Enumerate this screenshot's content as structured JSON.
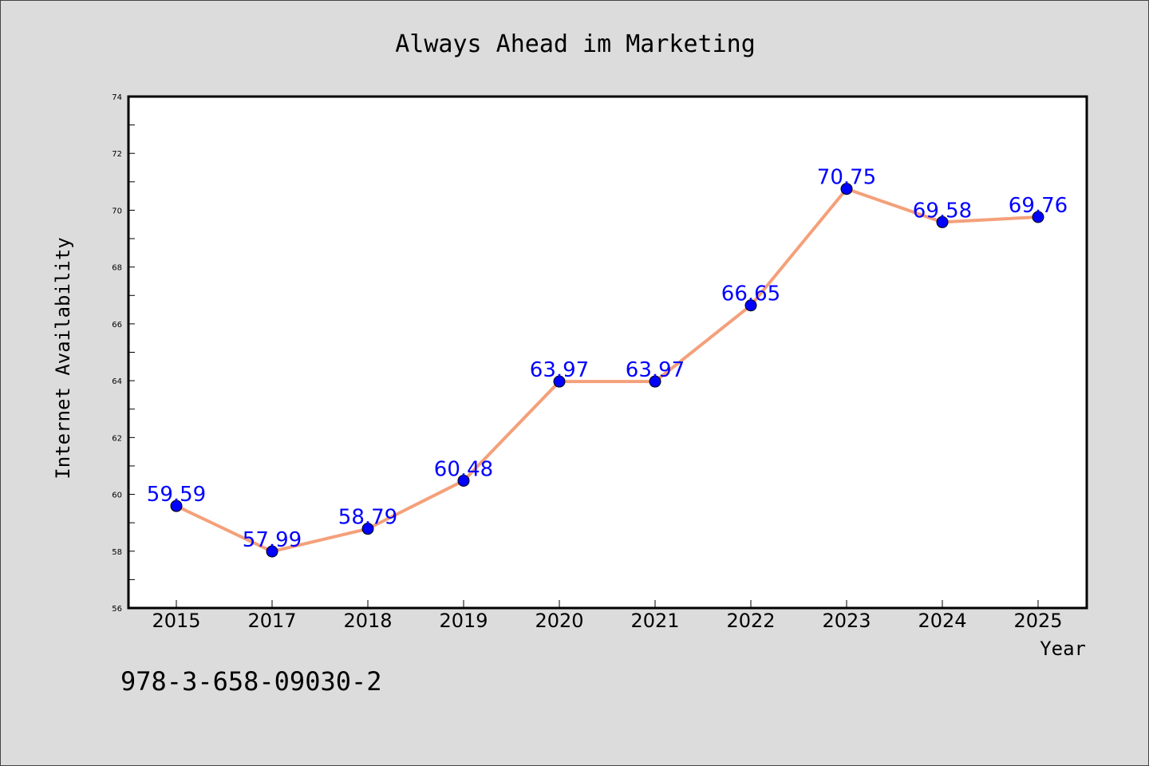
{
  "chart_data": {
    "type": "line",
    "title": "Always Ahead im Marketing",
    "xlabel": "Year",
    "ylabel": "Internet Availability",
    "categories": [
      "2015",
      "2017",
      "2018",
      "2019",
      "2020",
      "2021",
      "2022",
      "2023",
      "2024",
      "2025"
    ],
    "series": [
      {
        "values": [
          59.59,
          57.99,
          58.79,
          60.48,
          63.97,
          63.97,
          66.65,
          70.75,
          69.58,
          69.76
        ]
      }
    ],
    "data_labels": [
      "59.59",
      "57.99",
      "58.79",
      "60.48",
      "63.97",
      "63.97",
      "66.65",
      "70.75",
      "69.58",
      "69.76"
    ],
    "ylim": [
      56,
      74
    ],
    "yticks": [
      "56",
      "58",
      "60",
      "62",
      "64",
      "66",
      "68",
      "70",
      "72",
      "74"
    ],
    "grid": false,
    "colors": {
      "line": "#f4a07a",
      "marker": "#0000ff",
      "label": "#0000ff",
      "background": "#dcdcdc",
      "plot_background": "#ffffff"
    },
    "annotation": "978-3-658-09030-2"
  }
}
